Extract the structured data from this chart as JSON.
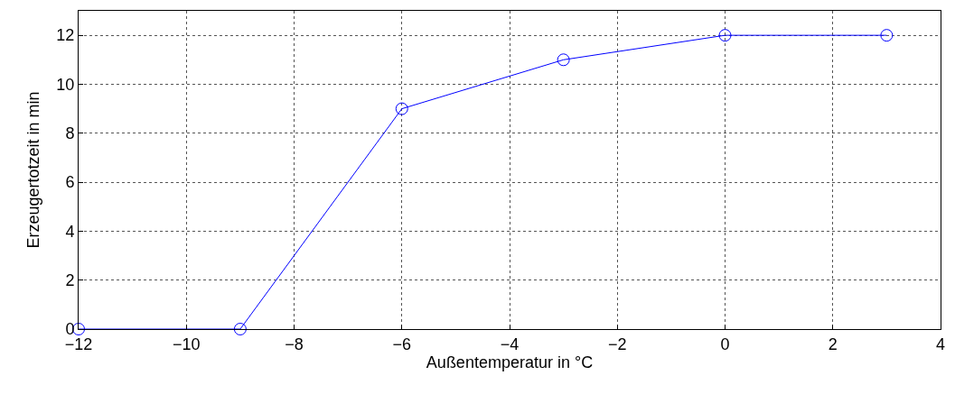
{
  "chart_data": {
    "type": "line",
    "xlabel": "Außentemperatur in °C",
    "ylabel": "Erzeugertotzeit in min",
    "x": [
      -12,
      -9,
      -6,
      -3,
      0,
      3
    ],
    "series": [
      {
        "color": "#0000ff",
        "values": [
          0,
          0,
          9,
          11,
          12,
          12
        ]
      }
    ],
    "xlim": [
      -12,
      4
    ],
    "ylim": [
      0,
      13
    ],
    "xticks": [
      {
        "value": -12,
        "label": "−12"
      },
      {
        "value": -10,
        "label": "−10"
      },
      {
        "value": -8,
        "label": "−8"
      },
      {
        "value": -6,
        "label": "−6"
      },
      {
        "value": -4,
        "label": "−4"
      },
      {
        "value": -2,
        "label": "−2"
      },
      0,
      2,
      4
    ],
    "yticks": [
      0,
      2,
      4,
      6,
      8,
      10,
      12
    ],
    "grid": true,
    "marker": "circle",
    "line_style": "solid"
  }
}
